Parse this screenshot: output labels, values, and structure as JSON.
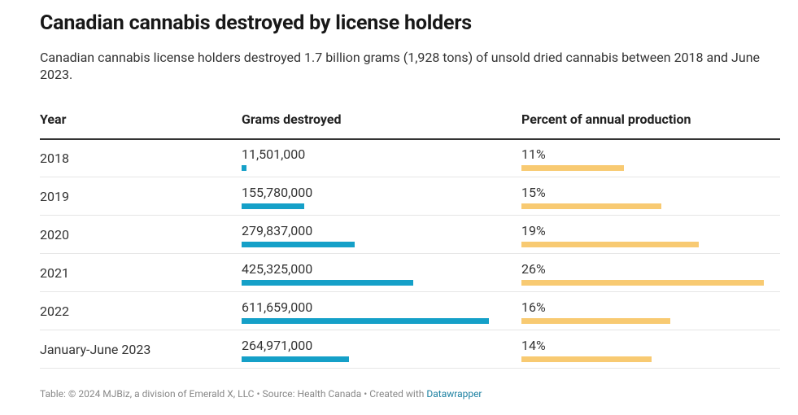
{
  "title": "Canadian cannabis destroyed by license holders",
  "subtitle": "Canadian cannabis license holders destroyed 1.7 billion grams (1,928 tons) of unsold dried cannabis between 2018 and June 2023.",
  "headers": {
    "year": "Year",
    "grams": "Grams destroyed",
    "percent": "Percent of annual production"
  },
  "footer": {
    "text": "Table: © 2024 MJBiz, a division of Emerald X, LLC • Source: Health Canada • Created with ",
    "link": "Datawrapper"
  },
  "colors": {
    "grams_bar": "#15a0c8",
    "percent_bar": "#f8ca72"
  },
  "chart_data": {
    "type": "table",
    "rows": [
      {
        "year": "2018",
        "grams": 11501000,
        "grams_label": "11,501,000",
        "percent": 11,
        "percent_label": "11%"
      },
      {
        "year": "2019",
        "grams": 155780000,
        "grams_label": "155,780,000",
        "percent": 15,
        "percent_label": "15%"
      },
      {
        "year": "2020",
        "grams": 279837000,
        "grams_label": "279,837,000",
        "percent": 19,
        "percent_label": "19%"
      },
      {
        "year": "2021",
        "grams": 425325000,
        "grams_label": "425,325,000",
        "percent": 26,
        "percent_label": "26%"
      },
      {
        "year": "2022",
        "grams": 611659000,
        "grams_label": "611,659,000",
        "percent": 16,
        "percent_label": "16%"
      },
      {
        "year": "January-June 2023",
        "grams": 264971000,
        "grams_label": "264,971,000",
        "percent": 14,
        "percent_label": "14%"
      }
    ]
  }
}
